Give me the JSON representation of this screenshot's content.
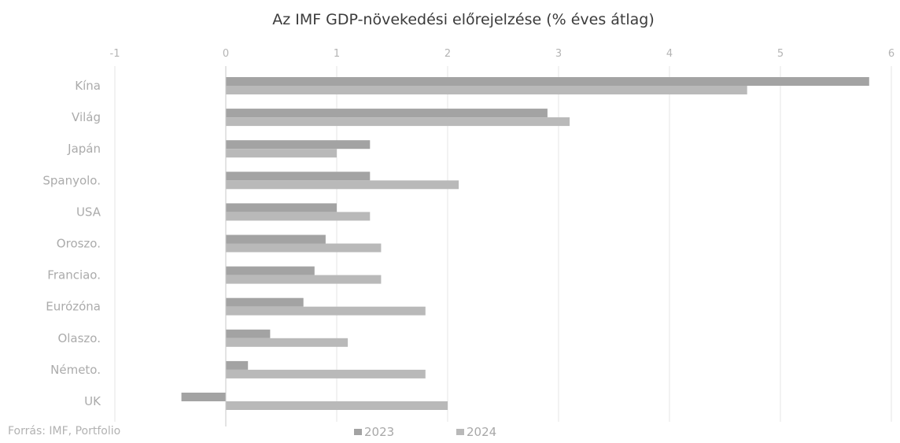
{
  "chart_data": {
    "type": "bar",
    "orientation": "horizontal",
    "title": "Az IMF GDP-növekedési előrejelzése (% éves átlag)",
    "xlabel": "",
    "ylabel": "",
    "xlim": [
      -1,
      6
    ],
    "xticks": [
      "-1",
      "0",
      "1",
      "2",
      "3",
      "4",
      "5",
      "6"
    ],
    "grid": true,
    "legend_position": "bottom",
    "categories": [
      "Kína",
      "Világ",
      "Japán",
      "Spanyolo.",
      "USA",
      "Oroszo.",
      "Franciao.",
      "Eurózóna",
      "Olaszo.",
      "Németo.",
      "UK"
    ],
    "series": [
      {
        "name": "2023",
        "color": "#a3a3a3",
        "values": [
          5.8,
          2.9,
          1.3,
          1.3,
          1.0,
          0.9,
          0.8,
          0.7,
          0.4,
          0.2,
          -0.4
        ]
      },
      {
        "name": "2024",
        "color": "#b9b9b9",
        "values": [
          4.7,
          3.1,
          1.0,
          2.1,
          1.3,
          1.4,
          1.4,
          1.8,
          1.1,
          1.8,
          2.0
        ]
      }
    ],
    "source": "Forrás: IMF, Portfolio"
  }
}
